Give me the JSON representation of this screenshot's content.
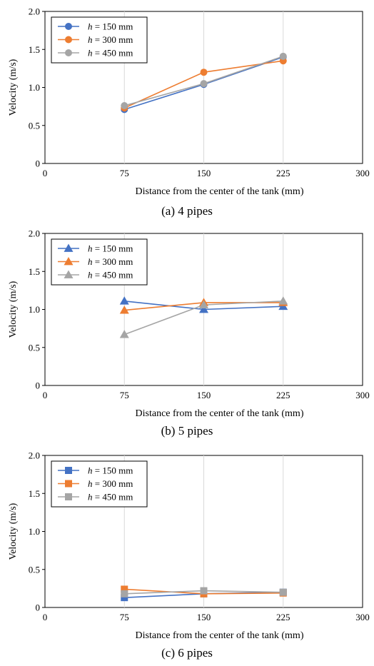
{
  "colors": {
    "h150": "#4472c4",
    "h300": "#ed7d31",
    "h450": "#a5a5a5",
    "grid": "#d9d9d9",
    "axis": "#000000"
  },
  "chart_data": [
    {
      "type": "line",
      "caption": "(a) 4 pipes",
      "marker": "circle",
      "xlabel": "Distance from the center of the tank (mm)",
      "ylabel": "Velocity (m/s)",
      "xlim": [
        0,
        300
      ],
      "ylim": [
        0,
        2.0
      ],
      "xticks": [
        "0",
        "75",
        "150",
        "225",
        "300"
      ],
      "yticks": [
        "0",
        "0.5",
        "1.0",
        "1.5",
        "2.0"
      ],
      "grid": "vertical",
      "legend_position": "top-left",
      "x": [
        75,
        150,
        225
      ],
      "series": [
        {
          "name_italic": "h",
          "name_rest": " = 150 mm",
          "color_key": "h150",
          "values": [
            0.71,
            1.04,
            1.4
          ]
        },
        {
          "name_italic": "h",
          "name_rest": " = 300 mm",
          "color_key": "h300",
          "values": [
            0.73,
            1.2,
            1.35
          ]
        },
        {
          "name_italic": "h",
          "name_rest": " = 450 mm",
          "color_key": "h450",
          "values": [
            0.76,
            1.05,
            1.41
          ]
        }
      ]
    },
    {
      "type": "line",
      "caption": "(b) 5 pipes",
      "marker": "triangle",
      "xlabel": "Distance from the center of the tank (mm)",
      "ylabel": "Velocity (m/s)",
      "xlim": [
        0,
        300
      ],
      "ylim": [
        0,
        2.0
      ],
      "xticks": [
        "0",
        "75",
        "150",
        "225",
        "300"
      ],
      "yticks": [
        "0",
        "0.5",
        "1.0",
        "1.5",
        "2.0"
      ],
      "grid": "vertical",
      "legend_position": "top-left",
      "x": [
        75,
        150,
        225
      ],
      "series": [
        {
          "name_italic": "h",
          "name_rest": " = 150 mm",
          "color_key": "h150",
          "values": [
            1.11,
            1.0,
            1.04
          ]
        },
        {
          "name_italic": "h",
          "name_rest": " = 300 mm",
          "color_key": "h300",
          "values": [
            0.99,
            1.09,
            1.09
          ]
        },
        {
          "name_italic": "h",
          "name_rest": " = 450 mm",
          "color_key": "h450",
          "values": [
            0.67,
            1.06,
            1.11
          ]
        }
      ]
    },
    {
      "type": "line",
      "caption": "(c) 6 pipes",
      "marker": "square",
      "xlabel": "Distance from the center of the tank (mm)",
      "ylabel": "Velocity (m/s)",
      "xlim": [
        0,
        300
      ],
      "ylim": [
        0,
        2.0
      ],
      "xticks": [
        "0",
        "75",
        "150",
        "225",
        "300"
      ],
      "yticks": [
        "0",
        "0.5",
        "1.0",
        "1.5",
        "2.0"
      ],
      "grid": "vertical",
      "legend_position": "top-left",
      "x": [
        75,
        150,
        225
      ],
      "series": [
        {
          "name_italic": "h",
          "name_rest": " = 150 mm",
          "color_key": "h150",
          "values": [
            0.13,
            0.18,
            0.2
          ]
        },
        {
          "name_italic": "h",
          "name_rest": " = 300 mm",
          "color_key": "h300",
          "values": [
            0.24,
            0.18,
            0.19
          ]
        },
        {
          "name_italic": "h",
          "name_rest": " = 450 mm",
          "color_key": "h450",
          "values": [
            0.18,
            0.22,
            0.2
          ]
        }
      ]
    }
  ]
}
